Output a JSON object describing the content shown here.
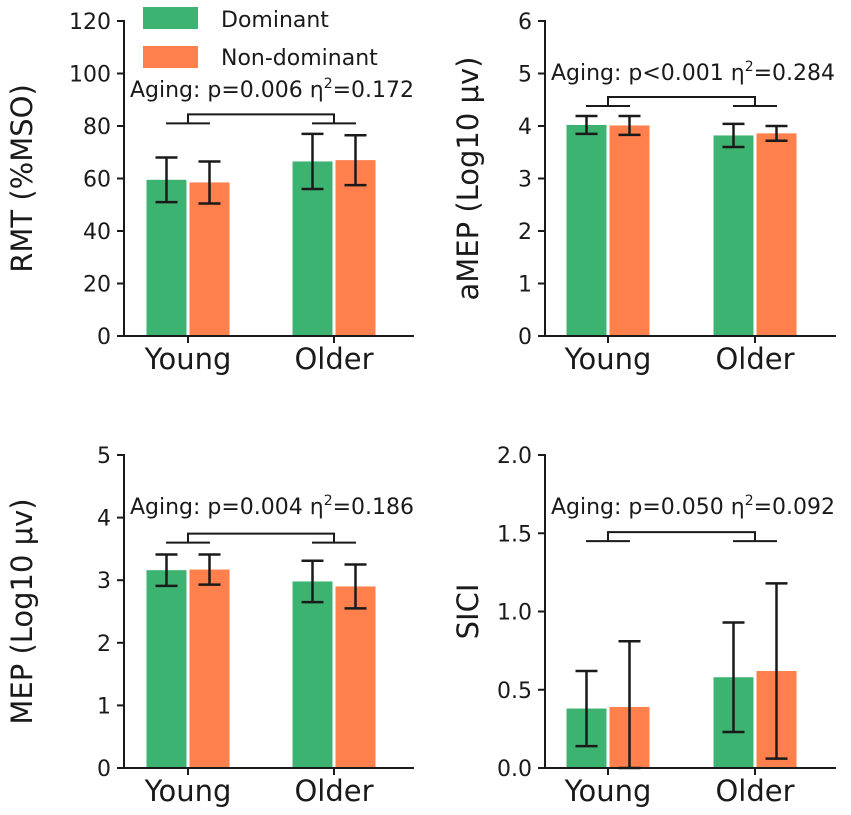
{
  "colors": {
    "dominant": "#3db371",
    "non_dominant": "#ff7f4d",
    "ink": "#1a1a1a"
  },
  "legend": {
    "placement": "top-left",
    "labels": [
      "Dominant",
      "Non-dominant"
    ]
  },
  "chart_data": [
    {
      "type": "bar",
      "categories": [
        "Young",
        "Older"
      ],
      "ylabel": "RMT (%MSO)",
      "ylim": [
        0,
        120
      ],
      "yticks": [
        0,
        20,
        40,
        60,
        80,
        100,
        120
      ],
      "ytick_labels": [
        "0",
        "20",
        "40",
        "60",
        "80",
        "100",
        "120"
      ],
      "series": [
        {
          "name": "Dominant",
          "values": [
            59.5,
            66.5
          ],
          "err": [
            8.5,
            10.5
          ]
        },
        {
          "name": "Non-dominant",
          "values": [
            58.5,
            67.0
          ],
          "err": [
            8.0,
            9.5
          ]
        }
      ],
      "annotation": {
        "prefix": "Aging: p=0.006 η",
        "sup": "2",
        "suffix": "=0.172",
        "bracket_level": 81
      }
    },
    {
      "type": "bar",
      "categories": [
        "Young",
        "Older"
      ],
      "ylabel": "aMEP (Log10 μv)",
      "ylim": [
        0,
        6
      ],
      "yticks": [
        0,
        1,
        2,
        3,
        4,
        5,
        6
      ],
      "ytick_labels": [
        "0",
        "1",
        "2",
        "3",
        "4",
        "5",
        "6"
      ],
      "series": [
        {
          "name": "Dominant",
          "values": [
            4.02,
            3.82
          ],
          "err": [
            0.17,
            0.22
          ]
        },
        {
          "name": "Non-dominant",
          "values": [
            4.01,
            3.86
          ],
          "err": [
            0.18,
            0.14
          ]
        }
      ],
      "annotation": {
        "prefix": "Aging: p<0.001 η",
        "sup": "2",
        "suffix": "=0.284",
        "bracket_level": 4.38
      }
    },
    {
      "type": "bar",
      "categories": [
        "Young",
        "Older"
      ],
      "ylabel": "MEP (Log10 μv)",
      "ylim": [
        0,
        5
      ],
      "yticks": [
        0,
        1,
        2,
        3,
        4,
        5
      ],
      "ytick_labels": [
        "0",
        "1",
        "2",
        "3",
        "4",
        "5"
      ],
      "series": [
        {
          "name": "Dominant",
          "values": [
            3.16,
            2.98
          ],
          "err": [
            0.25,
            0.33
          ]
        },
        {
          "name": "Non-dominant",
          "values": [
            3.17,
            2.9
          ],
          "err": [
            0.24,
            0.35
          ]
        }
      ],
      "annotation": {
        "prefix": "Aging: p=0.004 η",
        "sup": "2",
        "suffix": "=0.186",
        "bracket_level": 3.6
      }
    },
    {
      "type": "bar",
      "categories": [
        "Young",
        "Older"
      ],
      "ylabel": "SICI",
      "ylim": [
        0,
        2
      ],
      "yticks": [
        0,
        0.5,
        1.0,
        1.5,
        2.0
      ],
      "ytick_labels": [
        "0.0",
        "0.5",
        "1.0",
        "1.5",
        "2.0"
      ],
      "series": [
        {
          "name": "Dominant",
          "values": [
            0.38,
            0.58
          ],
          "err": [
            0.24,
            0.35
          ]
        },
        {
          "name": "Non-dominant",
          "values": [
            0.39,
            0.62
          ],
          "err": [
            0.42,
            0.56
          ]
        }
      ],
      "annotation": {
        "prefix": "Aging: p=0.050 η",
        "sup": "2",
        "suffix": "=0.092",
        "bracket_level": 1.45
      }
    }
  ]
}
